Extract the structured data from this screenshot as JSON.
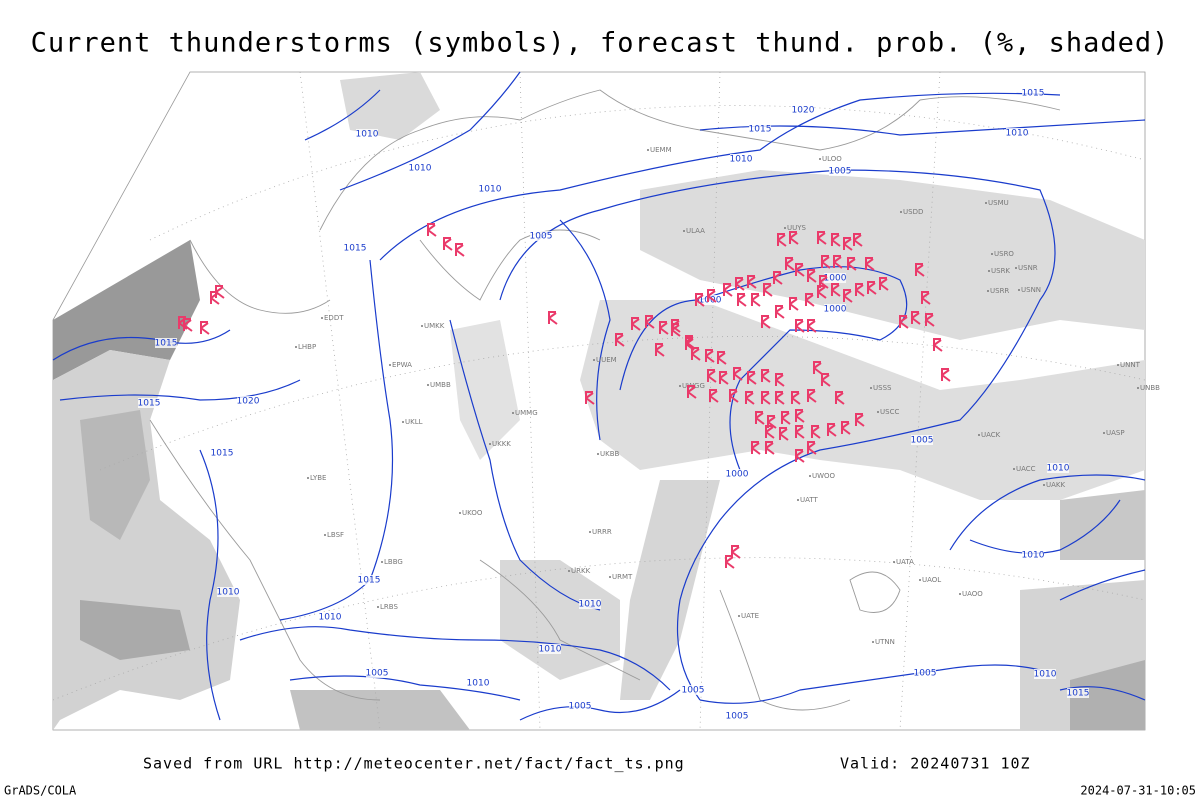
{
  "header": {
    "title": "Current thunderstorms (symbols), forecast thund. prob. (%, shaded)"
  },
  "isobar_labels": [
    "1010",
    "1010",
    "1010",
    "1010",
    "1015",
    "1020",
    "1015",
    "1010",
    "1005",
    "1005",
    "1015",
    "1015",
    "1015",
    "1020",
    "1015",
    "1000",
    "1000",
    "1000",
    "1005",
    "1000",
    "1010",
    "1010",
    "1015",
    "1010",
    "1010",
    "1010",
    "1010",
    "1010",
    "1005",
    "1005",
    "1005",
    "1005",
    "1005",
    "1010",
    "1015"
  ],
  "stations": [
    "ULAA",
    "UUYS",
    "USDD",
    "USMU",
    "USRO",
    "USRK",
    "USNR",
    "USRR",
    "USNN",
    "ULOO",
    "UEMM",
    "UUEM",
    "UWGG",
    "USSS",
    "USCC",
    "UNBB",
    "UNNT",
    "UACK",
    "UASP",
    "UACC",
    "UAKK",
    "UATA",
    "UAOL",
    "UAOO",
    "UTNN",
    "UATT",
    "UWOO",
    "UMKK",
    "UKKK",
    "UKLL",
    "UMBB",
    "UMMG",
    "UKBB",
    "URRR",
    "URKK",
    "URMT",
    "UATE",
    "EPWA",
    "EDDT",
    "LHBP",
    "LBSF",
    "LYBE",
    "LBBG",
    "LRBS",
    "UKOO"
  ],
  "footer": {
    "source": "Saved from URL http://meteocenter.net/fact/fact_ts.png",
    "valid": "Valid: 20240731 10Z",
    "software": "GrADS/COLA",
    "timestamp": "2024-07-31-10:05"
  }
}
